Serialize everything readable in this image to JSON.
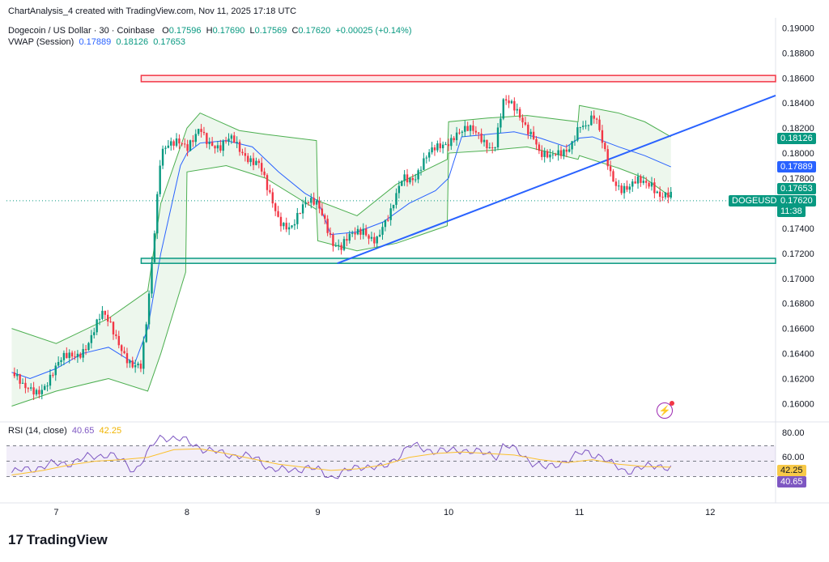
{
  "header": {
    "credit": "ChartAnalysis_4 created with TradingView.com, Nov 11, 2025 17:18 UTC",
    "symbol": "Dogecoin / US Dollar · 30 · Coinbase",
    "open_label": "O",
    "open": "0.17596",
    "high_label": "H",
    "high": "0.17690",
    "low_label": "L",
    "low": "0.17569",
    "close_label": "C",
    "close": "0.17620",
    "change": "+0.00025 (+0.14%)",
    "vwap_label": "VWAP (Session)",
    "vwap_values": [
      "0.17889",
      "0.18126",
      "0.17653"
    ]
  },
  "rsi": {
    "label": "RSI (14, close)",
    "value": "40.65",
    "ma_value": "42.25",
    "levels": [
      "80.00",
      "60.00"
    ]
  },
  "price_tag": {
    "symbol": "DOGEUSD",
    "price": "0.17620",
    "countdown": "11:38"
  },
  "branding": {
    "logo_mark": "17",
    "logo_text": "TradingView"
  },
  "colors": {
    "up": "#089981",
    "down": "#f23645",
    "vwap": "#2962ff",
    "band": "#4caf50",
    "trendline": "#2962ff",
    "resistance": "#f23645",
    "support": "#089981",
    "rsi": "#7e57c2",
    "rsi_ma": "#fbc02d"
  },
  "chart_data": {
    "type": "candlestick",
    "price_axis_ticks": [
      "0.19000",
      "0.18800",
      "0.18600",
      "0.18400",
      "0.18200",
      "0.18000",
      "0.17800",
      "0.17600",
      "0.17400",
      "0.17200",
      "0.17000",
      "0.16800",
      "0.16600",
      "0.16400",
      "0.16200",
      "0.16000"
    ],
    "ylim": [
      0.1588,
      0.1908
    ],
    "time_axis_ticks": [
      "7",
      "8",
      "9",
      "10",
      "11",
      "12"
    ],
    "xlim": [
      6.62,
      12.5
    ],
    "close_path": [
      [
        6.66,
        0.1625
      ],
      [
        6.75,
        0.1608
      ],
      [
        6.85,
        0.1612
      ],
      [
        6.95,
        0.1622
      ],
      [
        7.05,
        0.1632
      ],
      [
        7.15,
        0.164
      ],
      [
        7.25,
        0.1652
      ],
      [
        7.35,
        0.1668
      ],
      [
        7.42,
        0.166
      ],
      [
        7.5,
        0.1648
      ],
      [
        7.58,
        0.1632
      ],
      [
        7.65,
        0.1625
      ],
      [
        7.7,
        0.167
      ],
      [
        7.75,
        0.1735
      ],
      [
        7.8,
        0.1805
      ],
      [
        7.85,
        0.1812
      ],
      [
        7.92,
        0.1808
      ],
      [
        8.0,
        0.1798
      ],
      [
        8.05,
        0.181
      ],
      [
        8.1,
        0.1825
      ],
      [
        8.15,
        0.1815
      ],
      [
        8.25,
        0.18
      ],
      [
        8.35,
        0.181
      ],
      [
        8.45,
        0.1802
      ],
      [
        8.55,
        0.179
      ],
      [
        8.62,
        0.1765
      ],
      [
        8.7,
        0.1748
      ],
      [
        8.8,
        0.1745
      ],
      [
        8.9,
        0.1755
      ],
      [
        9.0,
        0.176
      ],
      [
        9.05,
        0.1752
      ],
      [
        9.12,
        0.173
      ],
      [
        9.18,
        0.1722
      ],
      [
        9.25,
        0.173
      ],
      [
        9.35,
        0.1742
      ],
      [
        9.45,
        0.1732
      ],
      [
        9.55,
        0.1745
      ],
      [
        9.65,
        0.1785
      ],
      [
        9.75,
        0.1783
      ],
      [
        9.85,
        0.1795
      ],
      [
        9.95,
        0.1808
      ],
      [
        10.05,
        0.1818
      ],
      [
        10.15,
        0.1815
      ],
      [
        10.25,
        0.1812
      ],
      [
        10.35,
        0.1808
      ],
      [
        10.42,
        0.184
      ],
      [
        10.5,
        0.1832
      ],
      [
        10.58,
        0.1825
      ],
      [
        10.65,
        0.1818
      ],
      [
        10.7,
        0.18
      ],
      [
        10.78,
        0.1792
      ],
      [
        10.85,
        0.1798
      ],
      [
        10.92,
        0.1808
      ],
      [
        11.0,
        0.1825
      ],
      [
        11.05,
        0.1818
      ],
      [
        11.12,
        0.1825
      ],
      [
        11.18,
        0.1808
      ],
      [
        11.25,
        0.1785
      ],
      [
        11.32,
        0.1772
      ],
      [
        11.38,
        0.1768
      ],
      [
        11.45,
        0.1775
      ],
      [
        11.55,
        0.178
      ],
      [
        11.62,
        0.1768
      ],
      [
        11.7,
        0.1762
      ]
    ],
    "vwap_path": [
      [
        6.66,
        0.1625
      ],
      [
        6.8,
        0.162
      ],
      [
        7.0,
        0.1628
      ],
      [
        7.2,
        0.164
      ],
      [
        7.4,
        0.1645
      ],
      [
        7.6,
        0.1632
      ],
      [
        7.7,
        0.166
      ],
      [
        7.8,
        0.172
      ],
      [
        7.95,
        0.179
      ],
      [
        8.0,
        0.18
      ],
      [
        8.1,
        0.1808
      ],
      [
        8.3,
        0.181
      ],
      [
        8.5,
        0.1805
      ],
      [
        8.7,
        0.1785
      ],
      [
        8.9,
        0.1768
      ],
      [
        9.0,
        0.1762
      ],
      [
        9.1,
        0.1735
      ],
      [
        9.3,
        0.1737
      ],
      [
        9.5,
        0.1745
      ],
      [
        9.7,
        0.176
      ],
      [
        9.9,
        0.177
      ],
      [
        10.0,
        0.178
      ],
      [
        10.1,
        0.1813
      ],
      [
        10.3,
        0.1815
      ],
      [
        10.5,
        0.1817
      ],
      [
        10.7,
        0.1812
      ],
      [
        10.9,
        0.1805
      ],
      [
        11.0,
        0.1812
      ],
      [
        11.1,
        0.1813
      ],
      [
        11.3,
        0.1805
      ],
      [
        11.5,
        0.1798
      ],
      [
        11.7,
        0.1789
      ]
    ],
    "vwap_upper": [
      [
        6.66,
        0.166
      ],
      [
        7.0,
        0.1648
      ],
      [
        7.4,
        0.1668
      ],
      [
        7.7,
        0.169
      ],
      [
        7.8,
        0.176
      ],
      [
        8.0,
        0.182
      ],
      [
        8.1,
        0.1832
      ],
      [
        8.4,
        0.1818
      ],
      [
        8.6,
        0.1815
      ],
      [
        8.99,
        0.181
      ],
      [
        9.0,
        0.1762
      ],
      [
        9.3,
        0.175
      ],
      [
        9.6,
        0.1775
      ],
      [
        9.99,
        0.1795
      ],
      [
        10.0,
        0.1825
      ],
      [
        10.3,
        0.1828
      ],
      [
        10.6,
        0.183
      ],
      [
        10.99,
        0.1825
      ],
      [
        11.0,
        0.1838
      ],
      [
        11.3,
        0.1832
      ],
      [
        11.5,
        0.1825
      ],
      [
        11.7,
        0.1813
      ]
    ],
    "vwap_lower": [
      [
        6.66,
        0.1598
      ],
      [
        7.0,
        0.161
      ],
      [
        7.4,
        0.162
      ],
      [
        7.7,
        0.161
      ],
      [
        7.8,
        0.164
      ],
      [
        7.99,
        0.1705
      ],
      [
        8.0,
        0.1785
      ],
      [
        8.3,
        0.179
      ],
      [
        8.6,
        0.178
      ],
      [
        8.99,
        0.1755
      ],
      [
        9.0,
        0.173
      ],
      [
        9.3,
        0.1722
      ],
      [
        9.6,
        0.1728
      ],
      [
        9.99,
        0.1742
      ],
      [
        10.0,
        0.18
      ],
      [
        10.3,
        0.1802
      ],
      [
        10.6,
        0.1805
      ],
      [
        10.99,
        0.1795
      ],
      [
        11.0,
        0.1798
      ],
      [
        11.3,
        0.1788
      ],
      [
        11.5,
        0.178
      ],
      [
        11.7,
        0.1765
      ]
    ],
    "resistance_zone": {
      "x": [
        7.65,
        12.5
      ],
      "y": [
        0.1857,
        0.1862
      ]
    },
    "support_zone": {
      "x": [
        7.65,
        12.5
      ],
      "y": [
        0.1712,
        0.1716
      ]
    },
    "trendline": [
      [
        9.15,
        0.1712
      ],
      [
        12.5,
        0.1846
      ]
    ],
    "last_price_line": 0.1762,
    "rsi_data": {
      "ylim": [
        0,
        100
      ],
      "levels": [
        70,
        50,
        30
      ],
      "rsi": [
        [
          6.66,
          35
        ],
        [
          6.8,
          40
        ],
        [
          6.95,
          45
        ],
        [
          7.1,
          48
        ],
        [
          7.25,
          55
        ],
        [
          7.4,
          60
        ],
        [
          7.5,
          50
        ],
        [
          7.6,
          38
        ],
        [
          7.7,
          60
        ],
        [
          7.78,
          80
        ],
        [
          7.85,
          82
        ],
        [
          7.95,
          78
        ],
        [
          8.05,
          72
        ],
        [
          8.15,
          65
        ],
        [
          8.25,
          60
        ],
        [
          8.4,
          58
        ],
        [
          8.55,
          52
        ],
        [
          8.65,
          40
        ],
        [
          8.75,
          37
        ],
        [
          8.9,
          42
        ],
        [
          9.0,
          38
        ],
        [
          9.1,
          30
        ],
        [
          9.2,
          35
        ],
        [
          9.35,
          45
        ],
        [
          9.5,
          40
        ],
        [
          9.6,
          55
        ],
        [
          9.7,
          70
        ],
        [
          9.85,
          65
        ],
        [
          10.0,
          62
        ],
        [
          10.1,
          66
        ],
        [
          10.25,
          60
        ],
        [
          10.38,
          58
        ],
        [
          10.42,
          72
        ],
        [
          10.55,
          60
        ],
        [
          10.65,
          48
        ],
        [
          10.75,
          40
        ],
        [
          10.85,
          48
        ],
        [
          10.95,
          55
        ],
        [
          11.05,
          62
        ],
        [
          11.15,
          58
        ],
        [
          11.25,
          45
        ],
        [
          11.35,
          38
        ],
        [
          11.5,
          41
        ],
        [
          11.6,
          46
        ],
        [
          11.7,
          40.65
        ]
      ],
      "ma": [
        [
          6.66,
          32
        ],
        [
          6.9,
          38
        ],
        [
          7.1,
          45
        ],
        [
          7.3,
          50
        ],
        [
          7.5,
          52
        ],
        [
          7.7,
          55
        ],
        [
          7.9,
          65
        ],
        [
          8.1,
          66
        ],
        [
          8.3,
          60
        ],
        [
          8.5,
          53
        ],
        [
          8.7,
          46
        ],
        [
          8.9,
          42
        ],
        [
          9.1,
          38
        ],
        [
          9.3,
          40
        ],
        [
          9.5,
          45
        ],
        [
          9.7,
          55
        ],
        [
          9.9,
          60
        ],
        [
          10.1,
          62
        ],
        [
          10.3,
          60
        ],
        [
          10.5,
          58
        ],
        [
          10.7,
          52
        ],
        [
          10.9,
          48
        ],
        [
          11.1,
          52
        ],
        [
          11.3,
          46
        ],
        [
          11.5,
          43
        ],
        [
          11.7,
          42.25
        ]
      ]
    }
  }
}
